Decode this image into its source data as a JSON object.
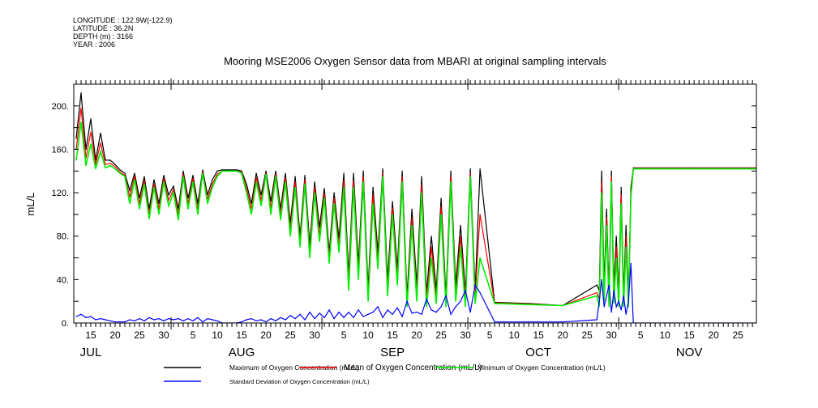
{
  "meta": {
    "longitude": "LONGITUDE : 122.9W(-122.9)",
    "latitude": "LATITUDE : 36.2N",
    "depth": "DEPTH (m) : 3166",
    "year": "YEAR : 2006"
  },
  "chart_data": {
    "type": "line",
    "title": "Mooring MSE2006 Oxygen Sensor data from MBARI at original sampling intervals",
    "xlabel": "",
    "ylabel": "mL/L",
    "x_units": "day of year 2006",
    "xlim": [
      192.5,
      332.8
    ],
    "ylim": [
      0,
      220
    ],
    "yticks": [
      0,
      40,
      80,
      120,
      160,
      200
    ],
    "ytick_labels": [
      "0.",
      "40.",
      "80.",
      "120.",
      "160.",
      "200."
    ],
    "months": [
      {
        "label": "JUL",
        "start": 182,
        "days": 31
      },
      {
        "label": "AUG",
        "start": 213,
        "days": 31
      },
      {
        "label": "SEP",
        "start": 244,
        "days": 30
      },
      {
        "label": "OCT",
        "start": 274,
        "days": 31
      },
      {
        "label": "NOV",
        "start": 305,
        "days": 30
      }
    ],
    "day_labels": [
      "5",
      "10",
      "15",
      "20",
      "25",
      "30"
    ],
    "grid": false,
    "legend_placement": "bottom",
    "x": [
      193,
      194,
      195,
      196,
      197,
      198,
      199,
      200,
      201,
      202,
      203,
      204,
      205,
      206,
      207,
      208,
      209,
      210,
      211,
      212,
      213,
      214,
      215,
      216,
      217,
      218,
      219,
      220,
      221,
      222,
      223,
      224,
      225,
      226,
      227,
      228,
      229,
      230,
      231,
      232,
      233,
      234,
      235,
      236,
      237,
      238,
      239,
      240,
      241,
      242,
      243,
      244,
      245,
      246,
      247,
      248,
      249,
      250,
      251,
      252,
      253,
      254,
      255,
      256,
      257,
      258,
      259,
      260,
      261,
      262,
      263,
      264,
      265,
      266,
      267,
      268,
      269,
      270,
      271,
      272,
      273,
      274,
      275,
      276,
      279,
      286,
      293,
      300,
      300.5,
      301,
      301.5,
      302,
      302.5,
      303,
      303.5,
      304,
      304.5,
      305,
      305.5,
      306,
      306.5,
      307,
      307.5,
      320,
      332.8
    ],
    "series": [
      {
        "name": "Maximum of Oxygen Concentration (mL/L)",
        "color": "#000000",
        "values": [
          170,
          212,
          160,
          188,
          150,
          175,
          150,
          150,
          146,
          141,
          138,
          122,
          138,
          115,
          135,
          105,
          132,
          110,
          136,
          118,
          126,
          105,
          140,
          115,
          136,
          110,
          141,
          118,
          132,
          140,
          141,
          141,
          141,
          141,
          140,
          128,
          110,
          138,
          118,
          140,
          112,
          140,
          105,
          138,
          92,
          135,
          80,
          136,
          72,
          130,
          88,
          124,
          65,
          120,
          78,
          138,
          45,
          138,
          55,
          140,
          32,
          125,
          65,
          142,
          40,
          112,
          50,
          140,
          25,
          105,
          35,
          135,
          28,
          80,
          30,
          115,
          25,
          140,
          35,
          90,
          28,
          142,
          30,
          142,
          19,
          18,
          16,
          35,
          30,
          140,
          35,
          105,
          28,
          140,
          32,
          80,
          25,
          125,
          25,
          90,
          22,
          125,
          143,
          143,
          143
        ]
      },
      {
        "name": "Mean of Oxygen Concentration (mL/L)",
        "color": "#ff0000",
        "values": [
          160,
          198,
          152,
          176,
          146,
          166,
          146,
          147,
          144,
          139,
          136,
          116,
          135,
          110,
          131,
          100,
          128,
          105,
          133,
          113,
          123,
          100,
          137,
          110,
          133,
          105,
          139,
          114,
          128,
          137,
          140,
          140,
          140,
          140,
          139,
          124,
          105,
          134,
          113,
          138,
          106,
          137,
          100,
          134,
          86,
          130,
          75,
          132,
          66,
          125,
          81,
          119,
          60,
          115,
          71,
          131,
          38,
          131,
          48,
          135,
          26,
          118,
          57,
          138,
          32,
          106,
          42,
          135,
          20,
          97,
          27,
          127,
          22,
          70,
          24,
          107,
          20,
          135,
          27,
          80,
          21,
          138,
          24,
          100,
          18.5,
          17.5,
          16,
          28,
          22,
          130,
          27,
          97,
          21,
          135,
          25,
          70,
          20,
          118,
          20,
          80,
          18,
          120,
          142.5,
          142.5,
          142.5
        ]
      },
      {
        "name": "Minimum of Oxygen Concentration (mL/L)",
        "color": "#00ee00",
        "values": [
          150,
          185,
          145,
          165,
          142,
          158,
          143,
          145,
          142,
          138,
          135,
          110,
          132,
          105,
          128,
          96,
          125,
          100,
          130,
          108,
          120,
          95,
          135,
          105,
          130,
          100,
          138,
          110,
          125,
          135,
          140,
          140,
          140,
          140,
          138,
          120,
          100,
          130,
          108,
          137,
          100,
          135,
          95,
          130,
          80,
          125,
          70,
          128,
          60,
          120,
          75,
          115,
          55,
          110,
          65,
          125,
          30,
          125,
          40,
          130,
          20,
          110,
          50,
          135,
          25,
          100,
          35,
          130,
          15,
          90,
          20,
          120,
          15,
          60,
          18,
          100,
          15,
          130,
          20,
          70,
          15,
          135,
          18,
          60,
          18,
          17,
          16,
          25,
          15,
          120,
          20,
          90,
          15,
          130,
          18,
          60,
          15,
          110,
          15,
          70,
          15,
          115,
          142,
          142,
          142
        ]
      },
      {
        "name": "Standard Deviation of Oxygen Concentration (mL/L)",
        "color": "#0000ff",
        "values": [
          6,
          8,
          5,
          6,
          3,
          4,
          3,
          2,
          1,
          1,
          1,
          3,
          2,
          4,
          2,
          5,
          3,
          4,
          2,
          4,
          3,
          4,
          2,
          4,
          2,
          5,
          1,
          4,
          3,
          2,
          0,
          0,
          0,
          0,
          1,
          3,
          4,
          2,
          3,
          1,
          4,
          2,
          5,
          3,
          7,
          4,
          8,
          3,
          10,
          4,
          9,
          5,
          12,
          4,
          10,
          5,
          10,
          5,
          12,
          6,
          8,
          10,
          15,
          5,
          12,
          8,
          14,
          6,
          20,
          9,
          10,
          8,
          22,
          12,
          10,
          15,
          25,
          8,
          15,
          20,
          30,
          10,
          35,
          28,
          1,
          1,
          1,
          3,
          20,
          40,
          15,
          25,
          35,
          10,
          30,
          15,
          20,
          12,
          25,
          8,
          20,
          55,
          0,
          0,
          0
        ]
      }
    ]
  }
}
